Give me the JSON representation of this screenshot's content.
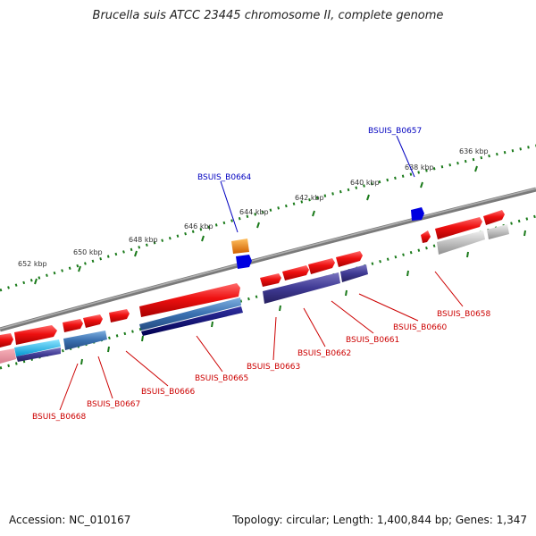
{
  "title": "Brucella suis ATCC 23445 chromosome II, complete genome",
  "footer": {
    "accession": "Accession: NC_010167",
    "stats": "Topology: circular; Length: 1,400,844 bp; Genes: 1,347"
  },
  "scale_labels": [
    "636 kbp",
    "638 kbp",
    "640 kbp",
    "642 kbp",
    "644 kbp",
    "646 kbp",
    "648 kbp",
    "650 kbp",
    "652 kbp"
  ],
  "genes_top": [
    "BSUIS_B0657",
    "BSUIS_B0664"
  ],
  "genes_bottom": [
    "BSUIS_B0658",
    "BSUIS_B0660",
    "BSUIS_B0661",
    "BSUIS_B0662",
    "BSUIS_B0663",
    "BSUIS_B0665",
    "BSUIS_B0666",
    "BSUIS_B0667",
    "BSUIS_B0668"
  ],
  "colors": {
    "forward": "#e8000b",
    "reverse_dark": "#3a3288",
    "blue_mid": "#3a6fae",
    "navy": "#000070",
    "cyan": "#00b0e8",
    "orange": "#f08000",
    "blue_marker": "#0000e0",
    "gray": "#b8b8b8",
    "ticks": "#1a7a1a",
    "top_label": "#0000c0",
    "bottom_label": "#cc0000"
  }
}
